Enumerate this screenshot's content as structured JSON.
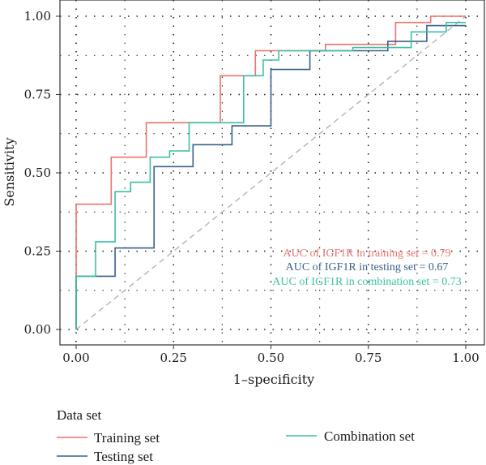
{
  "chart_data": {
    "type": "line",
    "xlabel": "1–specificity",
    "ylabel": "Sensitivity",
    "xlim": [
      0,
      1
    ],
    "ylim": [
      0,
      1
    ],
    "xticks": [
      "0.00",
      "0.25",
      "0.50",
      "0.75",
      "1.00"
    ],
    "yticks": [
      "0.00",
      "0.25",
      "0.50",
      "0.75",
      "1.00"
    ],
    "tick_values": [
      0,
      0.25,
      0.5,
      0.75,
      1
    ],
    "grid": true,
    "grid_style": "dotted",
    "reference_line": {
      "from": [
        0,
        0
      ],
      "to": [
        1,
        1
      ],
      "style": "dashed",
      "color": "#b3b3b3"
    },
    "legend": {
      "title": "Data set",
      "placement": "bottom",
      "entries": [
        "Training set",
        "Testing set",
        "Combination set"
      ]
    },
    "annotations": [
      {
        "text": "AUC of IGF1R in training set =  0.79",
        "color": "#e8736f"
      },
      {
        "text": "AUC of IGF1R in testing set =  0.67",
        "color": "#3a5f88"
      },
      {
        "text": "AUC of IGF1R in combination set =  0.73",
        "color": "#3dbfa4"
      }
    ],
    "series": [
      {
        "name": "Training set",
        "color": "#e8736f",
        "x": [
          0,
          0,
          0.09,
          0.09,
          0.18,
          0.18,
          0.37,
          0.37,
          0.46,
          0.46,
          0.64,
          0.64,
          0.82,
          0.82,
          0.91,
          0.91,
          1.0
        ],
        "y": [
          0,
          0.4,
          0.4,
          0.55,
          0.55,
          0.66,
          0.66,
          0.81,
          0.81,
          0.89,
          0.89,
          0.91,
          0.91,
          0.98,
          0.98,
          1.0,
          1.0
        ]
      },
      {
        "name": "Testing set",
        "color": "#3a5f88",
        "x": [
          0,
          0,
          0.1,
          0.1,
          0.2,
          0.2,
          0.3,
          0.3,
          0.4,
          0.4,
          0.5,
          0.5,
          0.6,
          0.6,
          0.8,
          0.8,
          0.9,
          0.9,
          1.0
        ],
        "y": [
          0,
          0.17,
          0.17,
          0.26,
          0.26,
          0.52,
          0.52,
          0.59,
          0.59,
          0.65,
          0.65,
          0.83,
          0.83,
          0.89,
          0.89,
          0.92,
          0.92,
          0.97,
          0.97
        ]
      },
      {
        "name": "Combination set",
        "color": "#3dbfa4",
        "x": [
          0,
          0,
          0.05,
          0.05,
          0.1,
          0.1,
          0.14,
          0.14,
          0.19,
          0.19,
          0.24,
          0.24,
          0.29,
          0.29,
          0.43,
          0.43,
          0.48,
          0.48,
          0.52,
          0.52,
          0.71,
          0.71,
          0.86,
          0.86,
          0.95,
          0.95,
          1.0
        ],
        "y": [
          0,
          0.17,
          0.17,
          0.28,
          0.28,
          0.44,
          0.44,
          0.47,
          0.47,
          0.55,
          0.55,
          0.57,
          0.57,
          0.66,
          0.66,
          0.81,
          0.81,
          0.86,
          0.86,
          0.89,
          0.89,
          0.9,
          0.9,
          0.95,
          0.95,
          0.98,
          0.98
        ]
      }
    ]
  }
}
